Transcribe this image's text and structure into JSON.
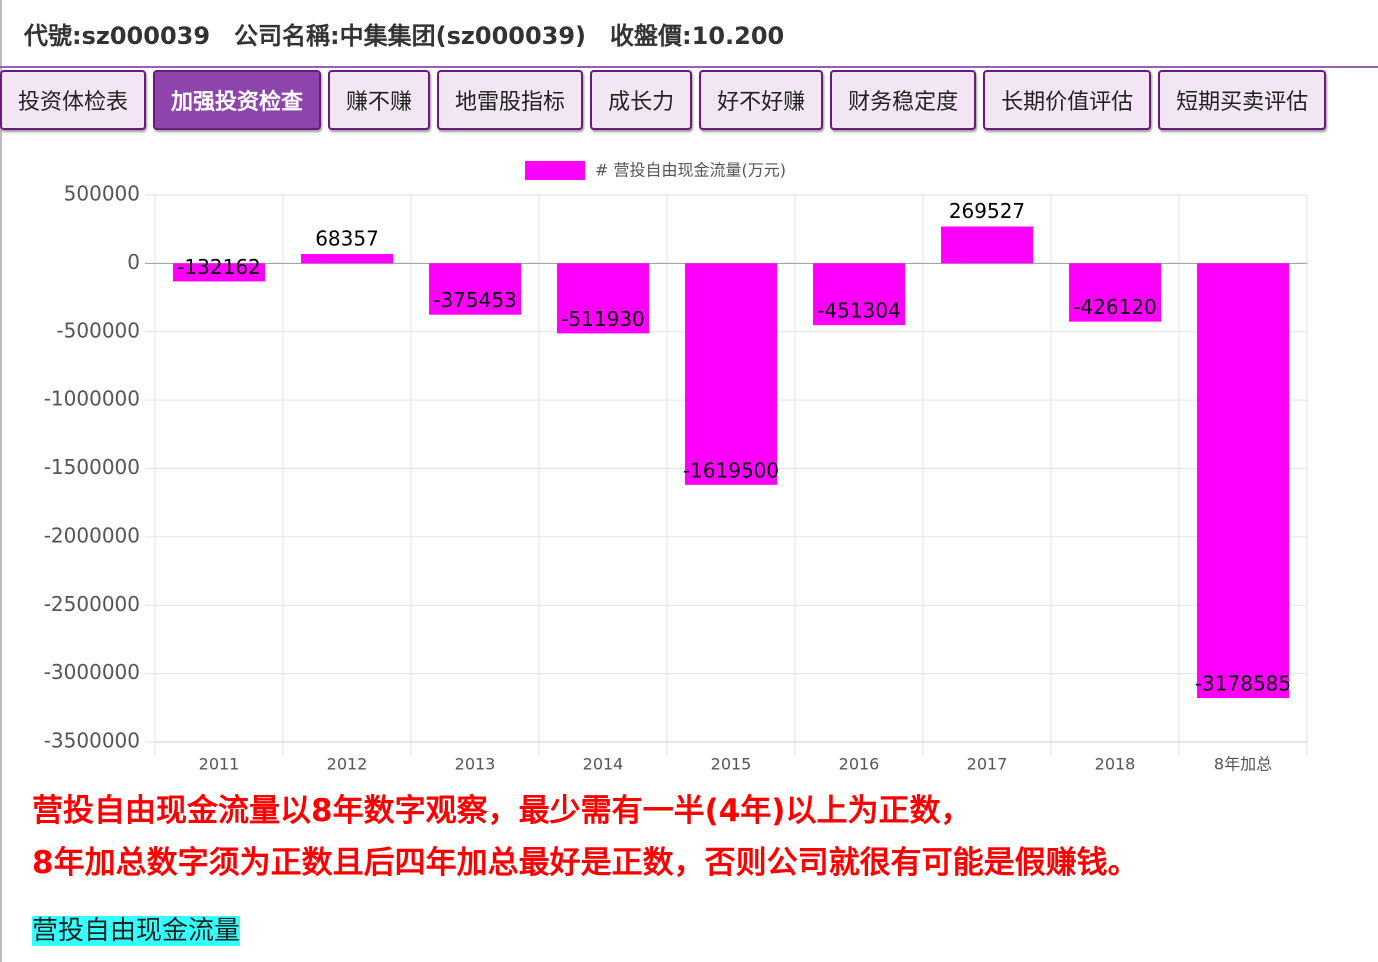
{
  "header": {
    "items": [
      "代號:sz000039",
      "公司名稱:中集集团(sz000039)",
      "收盤價:10.200"
    ]
  },
  "tabs": {
    "items": [
      "投资体检表",
      "加强投资检查",
      "赚不赚",
      "地雷股指标",
      "成长力",
      "好不好赚",
      "财务稳定度",
      "长期价值评估",
      "短期买卖评估"
    ],
    "active": 1
  },
  "chart_data": {
    "type": "bar",
    "legend": "# 营投自由现金流量(万元)",
    "color": "#ff00ff",
    "categories": [
      "2011",
      "2012",
      "2013",
      "2014",
      "2015",
      "2016",
      "2017",
      "2018",
      "8年加总"
    ],
    "values": [
      -132162,
      68357,
      -375453,
      -511930,
      -1619500,
      -451304,
      269527,
      -426120,
      -3178585
    ],
    "ylim": [
      -3500000,
      500000
    ],
    "yticks": [
      -3500000,
      -3000000,
      -2500000,
      -2000000,
      -1500000,
      -1000000,
      -500000,
      0,
      500000
    ],
    "grid": true
  },
  "notes": {
    "lines": [
      "营投自由现金流量以8年数字观察，最少需有一半(4年)以上为正数，",
      "8年加总数字须为正数且后四年加总最好是正数，否则公司就很有可能是假赚钱。"
    ]
  },
  "footer": {
    "label": "营投自由现金流量"
  }
}
